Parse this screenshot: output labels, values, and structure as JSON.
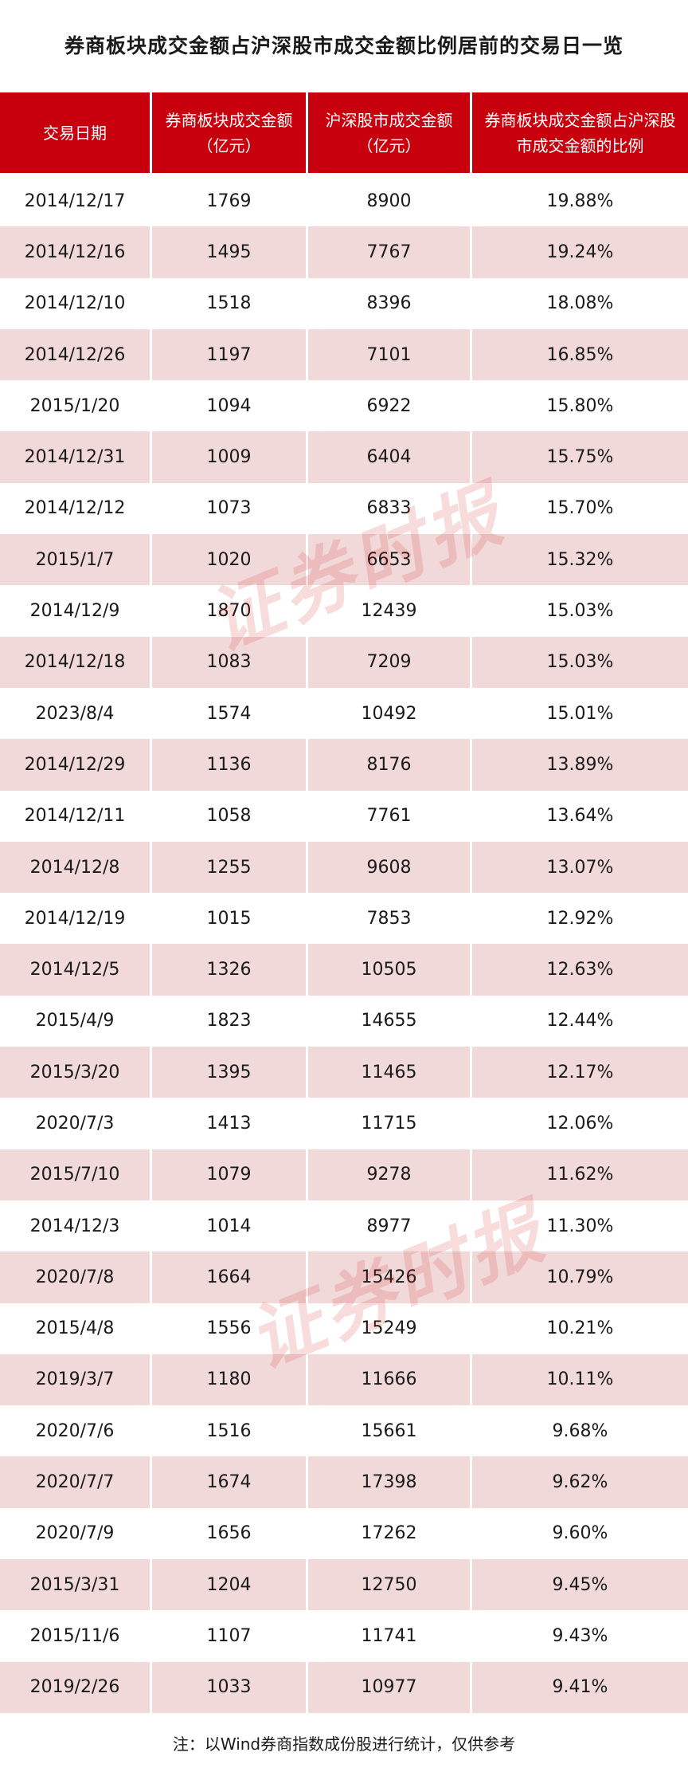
{
  "title": "券商板块成交金额占沪深股市成交金额比例居前的交易日一览",
  "table": {
    "headers": [
      "交易日期",
      "券商板块成交金额（亿元）",
      "沪深股市成交金额（亿元）",
      "券商板块成交金额占沪深股市成交金额的比例"
    ],
    "rows": [
      [
        "2014/12/17",
        "1769",
        "8900",
        "19.88%"
      ],
      [
        "2014/12/16",
        "1495",
        "7767",
        "19.24%"
      ],
      [
        "2014/12/10",
        "1518",
        "8396",
        "18.08%"
      ],
      [
        "2014/12/26",
        "1197",
        "7101",
        "16.85%"
      ],
      [
        "2015/1/20",
        "1094",
        "6922",
        "15.80%"
      ],
      [
        "2014/12/31",
        "1009",
        "6404",
        "15.75%"
      ],
      [
        "2014/12/12",
        "1073",
        "6833",
        "15.70%"
      ],
      [
        "2015/1/7",
        "1020",
        "6653",
        "15.32%"
      ],
      [
        "2014/12/9",
        "1870",
        "12439",
        "15.03%"
      ],
      [
        "2014/12/18",
        "1083",
        "7209",
        "15.03%"
      ],
      [
        "2023/8/4",
        "1574",
        "10492",
        "15.01%"
      ],
      [
        "2014/12/29",
        "1136",
        "8176",
        "13.89%"
      ],
      [
        "2014/12/11",
        "1058",
        "7761",
        "13.64%"
      ],
      [
        "2014/12/8",
        "1255",
        "9608",
        "13.07%"
      ],
      [
        "2014/12/19",
        "1015",
        "7853",
        "12.92%"
      ],
      [
        "2014/12/5",
        "1326",
        "10505",
        "12.63%"
      ],
      [
        "2015/4/9",
        "1823",
        "14655",
        "12.44%"
      ],
      [
        "2015/3/20",
        "1395",
        "11465",
        "12.17%"
      ],
      [
        "2020/7/3",
        "1413",
        "11715",
        "12.06%"
      ],
      [
        "2015/7/10",
        "1079",
        "9278",
        "11.62%"
      ],
      [
        "2014/12/3",
        "1014",
        "8977",
        "11.30%"
      ],
      [
        "2020/7/8",
        "1664",
        "15426",
        "10.79%"
      ],
      [
        "2015/4/8",
        "1556",
        "15249",
        "10.21%"
      ],
      [
        "2019/3/7",
        "1180",
        "11666",
        "10.11%"
      ],
      [
        "2020/7/6",
        "1516",
        "15661",
        "9.68%"
      ],
      [
        "2020/7/7",
        "1674",
        "17398",
        "9.62%"
      ],
      [
        "2020/7/9",
        "1656",
        "17262",
        "9.60%"
      ],
      [
        "2015/3/31",
        "1204",
        "12750",
        "9.45%"
      ],
      [
        "2015/11/6",
        "1107",
        "11741",
        "9.43%"
      ],
      [
        "2019/2/26",
        "1033",
        "10977",
        "9.41%"
      ]
    ]
  },
  "watermark": "证券时报",
  "footnote": "注：以Wind券商指数成份股进行统计，仅供参考",
  "colors": {
    "header_bg": "#c8000d",
    "header_text": "#ffffff",
    "stripe_bg": "#f1d9da",
    "watermark": "#d62828"
  }
}
